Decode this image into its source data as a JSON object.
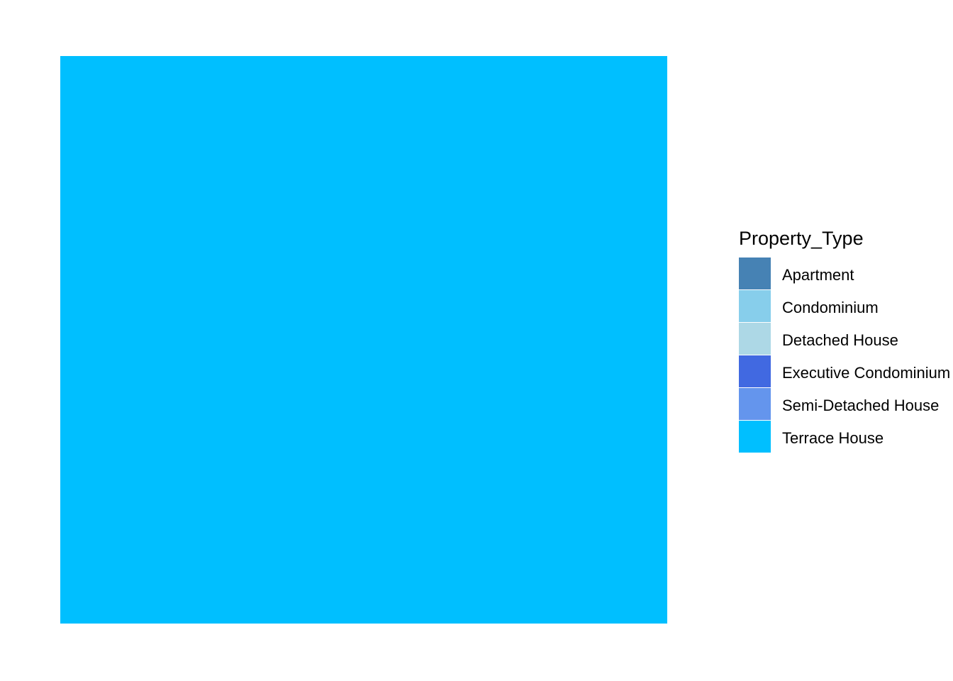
{
  "chart_data": {
    "type": "area",
    "title": "",
    "xlabel": "",
    "ylabel": "",
    "grid": false,
    "axes_visible": false,
    "legend_placement": "right",
    "categories": [
      "Apartment",
      "Condominium",
      "Detached House",
      "Executive Condominium",
      "Semi-Detached House",
      "Terrace House"
    ],
    "series": [
      {
        "name": "Apartment",
        "value": 0,
        "color": "#4682B4"
      },
      {
        "name": "Condominium",
        "value": 0,
        "color": "#87CEEB"
      },
      {
        "name": "Detached House",
        "value": 0,
        "color": "#ADD8E6"
      },
      {
        "name": "Executive Condominium",
        "value": 0,
        "color": "#4169E1"
      },
      {
        "name": "Semi-Detached House",
        "value": 0,
        "color": "#6495ED"
      },
      {
        "name": "Terrace House",
        "value": 1,
        "color": "#00BFFF"
      }
    ],
    "legend": {
      "title": "Property_Type"
    }
  }
}
